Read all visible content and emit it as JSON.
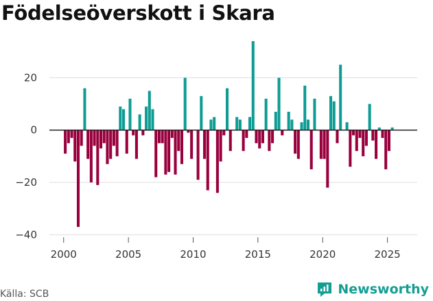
{
  "title": "Födelseöverskott i Skara",
  "source": "Källa: SCB",
  "brand": "Newsworthy",
  "colors": {
    "positive": "#0e9c94",
    "negative": "#99003d",
    "grid": "#dddddd",
    "zero": "#222222",
    "brand": "#139e93"
  },
  "chart_data": {
    "type": "bar",
    "title": "Födelseöverskott i Skara",
    "xlabel": "",
    "ylabel": "",
    "granularity": "quarterly",
    "start": 2000.0,
    "step": 0.25,
    "ylim": [
      -42,
      34
    ],
    "xlim": [
      1998.9,
      2027.3
    ],
    "yticks": [
      -40,
      -20,
      0,
      20
    ],
    "ytick_labels": [
      "−40",
      "−20",
      "0",
      "20"
    ],
    "xticks": [
      2000,
      2005,
      2010,
      2015,
      2020,
      2025
    ],
    "xtick_labels": [
      "2000",
      "2005",
      "2010",
      "2015",
      "2020",
      "2025"
    ],
    "values": [
      -9,
      -5,
      -3,
      -12,
      -37,
      -6,
      16,
      -11,
      -20,
      -6,
      -21,
      -7,
      -5,
      -13,
      -11,
      -6,
      -10,
      9,
      8,
      -9,
      12,
      -2,
      -11,
      6,
      -2,
      9,
      15,
      8,
      -18,
      -5,
      -5,
      -17,
      -16,
      -3,
      -17,
      -8,
      -13,
      20,
      -1,
      -11,
      0,
      -19,
      13,
      -11,
      -23,
      4,
      5,
      -24,
      -12,
      -2,
      16,
      -8,
      0,
      5,
      4,
      -8,
      -3,
      5,
      34,
      -5,
      -7,
      -5,
      12,
      -8,
      -5,
      7,
      20,
      -2,
      0,
      7,
      4,
      -9,
      -11,
      3,
      17,
      4,
      -15,
      12,
      0,
      -11,
      -11,
      -22,
      13,
      11,
      -5,
      25,
      0,
      3,
      -14,
      -2,
      -8,
      -3,
      -10,
      -6,
      10,
      -4,
      -11,
      1,
      -3,
      -15,
      -8,
      1
    ]
  }
}
